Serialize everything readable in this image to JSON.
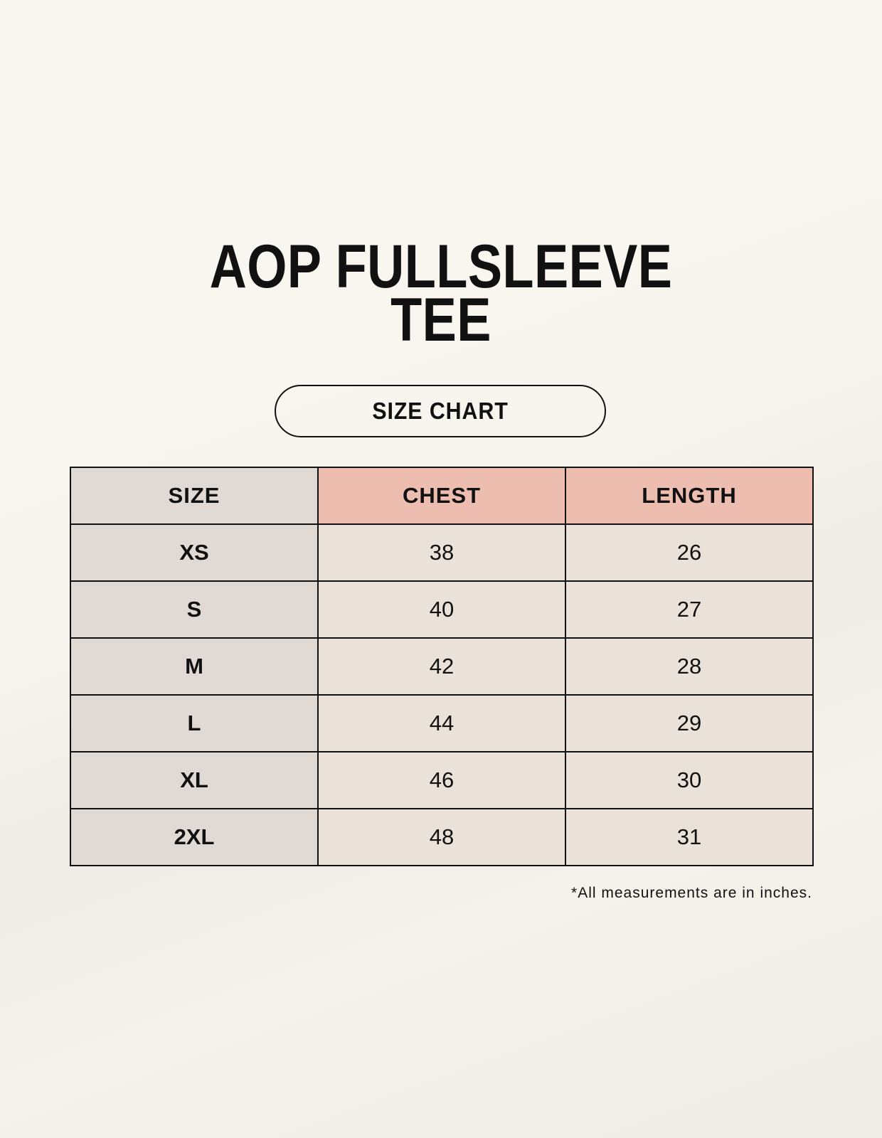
{
  "title": {
    "line1": "AOP FULLSLEEVE",
    "line2": "TEE"
  },
  "badge": "SIZE CHART",
  "table": {
    "headers": [
      "SIZE",
      "CHEST",
      "LENGTH"
    ],
    "rows": [
      [
        "XS",
        "38",
        "26"
      ],
      [
        "S",
        "40",
        "27"
      ],
      [
        "M",
        "42",
        "28"
      ],
      [
        "L",
        "44",
        "29"
      ],
      [
        "XL",
        "46",
        "30"
      ],
      [
        "2XL",
        "48",
        "31"
      ]
    ]
  },
  "footnote": "*All measurements are in inches.",
  "colors": {
    "size_column": "#e0d9d4",
    "header_accent": "#edbdb0",
    "cell": "#eae2d8",
    "background": "#f7f5ee"
  }
}
